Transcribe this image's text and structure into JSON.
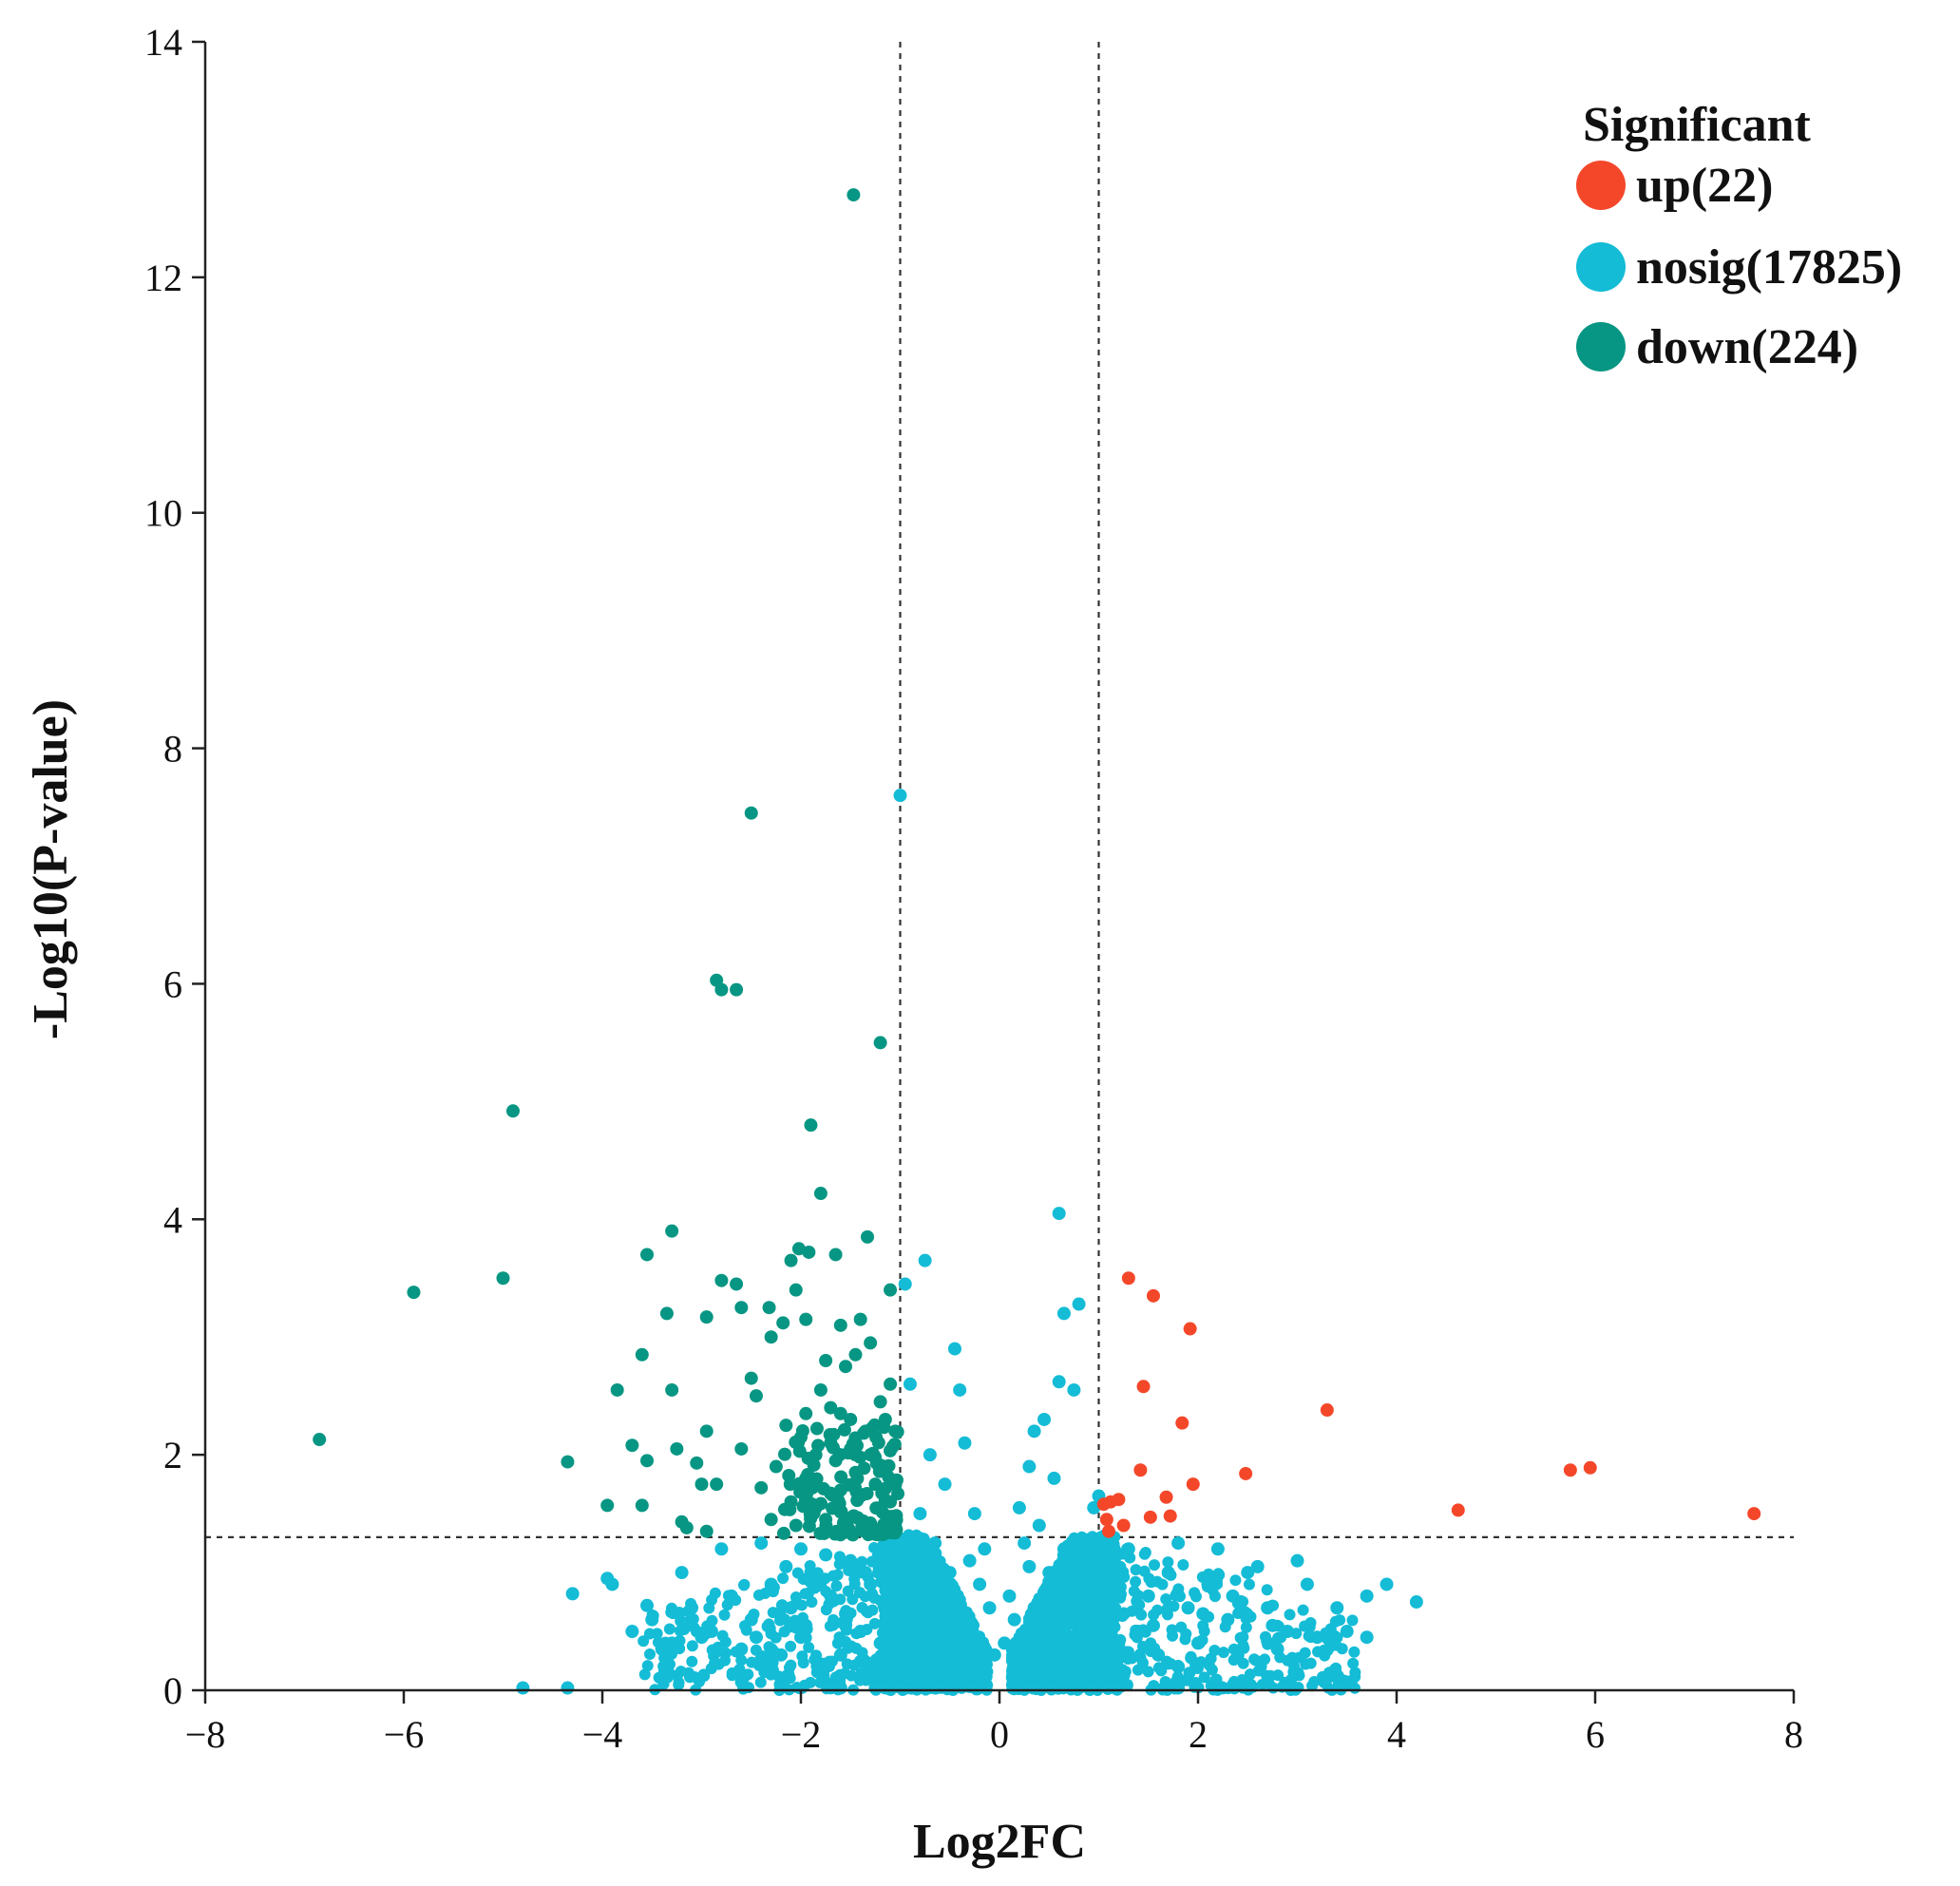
{
  "chart_data": {
    "type": "scatter",
    "title": "",
    "xlabel": "Log2FC",
    "ylabel": "-Log10(P-value)",
    "xlim": [
      -8,
      8
    ],
    "ylim": [
      0,
      14
    ],
    "xticks": [
      -8,
      -6,
      -4,
      -2,
      0,
      2,
      4,
      6,
      8
    ],
    "xtick_labels": [
      "−8",
      "−6",
      "−4",
      "−2",
      "0",
      "2",
      "4",
      "6",
      "8"
    ],
    "yticks": [
      0,
      2,
      4,
      6,
      8,
      10,
      12,
      14
    ],
    "ytick_labels": [
      "0",
      "2",
      "4",
      "6",
      "8",
      "10",
      "12",
      "14"
    ],
    "grid": false,
    "thresholds": {
      "log2fc": [
        -1,
        1
      ],
      "neg_log10_p": 1.3
    },
    "legend": {
      "title": "Significant",
      "position": "top-right",
      "entries": [
        {
          "key": "up",
          "label": "up(22)",
          "color": "#f4472a"
        },
        {
          "key": "nosig",
          "label": "nosig(17825)",
          "color": "#14bcd6"
        },
        {
          "key": "down",
          "label": "down(224)",
          "color": "#079683"
        }
      ]
    },
    "series": [
      {
        "name": "up",
        "color": "#f4472a",
        "points": [
          [
            7.6,
            1.5
          ],
          [
            5.95,
            1.89
          ],
          [
            5.75,
            1.87
          ],
          [
            4.62,
            1.53
          ],
          [
            3.3,
            2.38
          ],
          [
            2.48,
            1.84
          ],
          [
            1.92,
            3.07
          ],
          [
            1.95,
            1.75
          ],
          [
            1.84,
            2.27
          ],
          [
            1.55,
            3.35
          ],
          [
            1.45,
            2.58
          ],
          [
            1.42,
            1.87
          ],
          [
            1.3,
            3.5
          ],
          [
            1.72,
            1.48
          ],
          [
            1.52,
            1.47
          ],
          [
            1.68,
            1.64
          ],
          [
            1.05,
            1.58
          ],
          [
            1.12,
            1.6
          ],
          [
            1.2,
            1.62
          ],
          [
            1.1,
            1.35
          ],
          [
            1.25,
            1.4
          ],
          [
            1.08,
            1.45
          ]
        ]
      },
      {
        "name": "down",
        "color": "#079683",
        "points": [
          [
            -1.47,
            12.7
          ],
          [
            -2.5,
            7.45
          ],
          [
            -2.85,
            6.03
          ],
          [
            -2.8,
            5.95
          ],
          [
            -2.65,
            5.95
          ],
          [
            -1.2,
            5.5
          ],
          [
            -4.9,
            4.92
          ],
          [
            -1.9,
            4.8
          ],
          [
            -1.8,
            4.22
          ],
          [
            -3.3,
            3.9
          ],
          [
            -1.33,
            3.85
          ],
          [
            -3.55,
            3.7
          ],
          [
            -1.92,
            3.72
          ],
          [
            -2.02,
            3.75
          ],
          [
            -1.65,
            3.7
          ],
          [
            -2.1,
            3.65
          ],
          [
            -5.0,
            3.5
          ],
          [
            -5.9,
            3.38
          ],
          [
            -2.8,
            3.48
          ],
          [
            -2.65,
            3.45
          ],
          [
            -1.1,
            3.4
          ],
          [
            -2.05,
            3.4
          ],
          [
            -3.35,
            3.2
          ],
          [
            -2.6,
            3.25
          ],
          [
            -2.32,
            3.25
          ],
          [
            -2.95,
            3.17
          ],
          [
            -1.4,
            3.15
          ],
          [
            -1.6,
            3.1
          ],
          [
            -2.18,
            3.12
          ],
          [
            -1.95,
            3.15
          ],
          [
            -2.3,
            3.0
          ],
          [
            -1.3,
            2.95
          ],
          [
            -1.45,
            2.85
          ],
          [
            -3.6,
            2.85
          ],
          [
            -2.5,
            2.65
          ],
          [
            -1.75,
            2.8
          ],
          [
            -1.55,
            2.75
          ],
          [
            -3.85,
            2.55
          ],
          [
            -3.3,
            2.55
          ],
          [
            -2.45,
            2.5
          ],
          [
            -1.8,
            2.55
          ],
          [
            -1.1,
            2.6
          ],
          [
            -1.2,
            2.45
          ],
          [
            -1.6,
            2.35
          ],
          [
            -1.95,
            2.35
          ],
          [
            -2.15,
            2.25
          ],
          [
            -2.95,
            2.2
          ],
          [
            -3.25,
            2.05
          ],
          [
            -3.7,
            2.08
          ],
          [
            -6.85,
            2.13
          ],
          [
            -4.35,
            1.94
          ],
          [
            -3.55,
            1.95
          ],
          [
            -3.05,
            1.93
          ],
          [
            -2.6,
            2.05
          ],
          [
            -3.0,
            1.75
          ],
          [
            -2.85,
            1.75
          ],
          [
            -2.25,
            1.9
          ],
          [
            -1.7,
            2.1
          ],
          [
            -1.5,
            2.05
          ],
          [
            -1.3,
            2.0
          ],
          [
            -1.15,
            1.9
          ],
          [
            -1.95,
            1.8
          ],
          [
            -2.4,
            1.72
          ],
          [
            -2.1,
            1.6
          ],
          [
            -1.85,
            1.55
          ],
          [
            -1.6,
            1.7
          ],
          [
            -1.4,
            1.65
          ],
          [
            -1.2,
            1.55
          ],
          [
            -3.95,
            1.57
          ],
          [
            -3.6,
            1.57
          ],
          [
            -3.2,
            1.43
          ],
          [
            -2.95,
            1.35
          ],
          [
            -3.15,
            1.38
          ],
          [
            -2.3,
            1.45
          ],
          [
            -2.05,
            1.4
          ],
          [
            -1.75,
            1.45
          ],
          [
            -1.55,
            1.38
          ],
          [
            -1.3,
            1.42
          ],
          [
            -1.05,
            1.4
          ],
          [
            -1.1,
            1.6
          ],
          [
            -1.25,
            1.75
          ],
          [
            -1.45,
            1.85
          ],
          [
            -1.65,
            1.95
          ],
          [
            -1.85,
            2.0
          ],
          [
            -2.0,
            2.15
          ],
          [
            -1.05,
            2.2
          ],
          [
            -1.15,
            2.3
          ],
          [
            -1.35,
            2.2
          ],
          [
            -1.5,
            2.3
          ],
          [
            -1.7,
            2.4
          ]
        ]
      },
      {
        "name": "nosig",
        "color": "#14bcd6",
        "points": [
          [
            -1.0,
            7.6
          ],
          [
            0.6,
            4.05
          ],
          [
            -0.75,
            3.65
          ],
          [
            -0.95,
            3.45
          ],
          [
            0.8,
            3.28
          ],
          [
            0.65,
            3.2
          ],
          [
            -0.45,
            2.9
          ],
          [
            0.6,
            2.62
          ],
          [
            0.75,
            2.55
          ],
          [
            -0.4,
            2.55
          ],
          [
            -0.9,
            2.6
          ],
          [
            0.45,
            2.3
          ],
          [
            0.35,
            2.2
          ],
          [
            -0.35,
            2.1
          ],
          [
            -0.7,
            2.0
          ],
          [
            0.3,
            1.9
          ],
          [
            0.55,
            1.8
          ],
          [
            -0.55,
            1.75
          ],
          [
            -0.25,
            1.5
          ],
          [
            0.2,
            1.55
          ],
          [
            1.0,
            1.65
          ],
          [
            0.95,
            1.55
          ],
          [
            -0.8,
            1.5
          ],
          [
            0.4,
            1.4
          ],
          [
            -0.15,
            1.2
          ],
          [
            0.25,
            1.25
          ],
          [
            0.1,
            0.8
          ],
          [
            -0.1,
            0.7
          ],
          [
            0.05,
            0.4
          ],
          [
            -0.05,
            0.3
          ],
          [
            0.15,
            0.6
          ],
          [
            -0.2,
            0.9
          ],
          [
            0.3,
            1.05
          ],
          [
            -0.3,
            1.1
          ],
          [
            0.5,
            1.0
          ],
          [
            -0.5,
            1.0
          ],
          [
            0.7,
            0.9
          ],
          [
            -0.7,
            0.85
          ],
          [
            0.9,
            0.75
          ],
          [
            -0.9,
            0.7
          ],
          [
            0.8,
            0.5
          ],
          [
            -0.8,
            0.45
          ],
          [
            0.6,
            0.3
          ],
          [
            -0.6,
            0.25
          ],
          [
            0.4,
            0.15
          ],
          [
            -0.4,
            0.1
          ],
          [
            0.2,
            0.05
          ],
          [
            -0.2,
            0.05
          ],
          [
            0.35,
            0.7
          ],
          [
            -0.35,
            0.6
          ],
          [
            0.55,
            0.55
          ],
          [
            -0.55,
            0.5
          ],
          [
            0.75,
            0.2
          ],
          [
            -0.75,
            0.2
          ],
          [
            0.95,
            0.3
          ],
          [
            -0.95,
            0.3
          ],
          [
            0.85,
            1.1
          ],
          [
            -0.85,
            1.15
          ],
          [
            0.65,
            1.2
          ],
          [
            -0.65,
            1.25
          ],
          [
            1.1,
            0.9
          ],
          [
            1.3,
            1.2
          ],
          [
            1.5,
            0.8
          ],
          [
            1.7,
            1.0
          ],
          [
            1.9,
            0.7
          ],
          [
            2.1,
            0.9
          ],
          [
            2.3,
            0.6
          ],
          [
            2.5,
            1.0
          ],
          [
            2.7,
            0.7
          ],
          [
            2.9,
            0.5
          ],
          [
            3.1,
            0.9
          ],
          [
            3.4,
            0.7
          ],
          [
            3.7,
            0.8
          ],
          [
            3.9,
            0.9
          ],
          [
            4.2,
            0.75
          ],
          [
            3.5,
            0.5
          ],
          [
            3.0,
            1.1
          ],
          [
            2.6,
            1.05
          ],
          [
            2.2,
            1.2
          ],
          [
            1.8,
            1.25
          ],
          [
            1.2,
            0.4
          ],
          [
            1.4,
            0.5
          ],
          [
            1.6,
            0.3
          ],
          [
            1.8,
            0.2
          ],
          [
            2.0,
            0.4
          ],
          [
            2.4,
            0.3
          ],
          [
            2.8,
            0.35
          ],
          [
            3.2,
            0.45
          ],
          [
            3.7,
            0.45
          ],
          [
            1.0,
            0.2
          ],
          [
            1.25,
            0.65
          ],
          [
            1.55,
            0.55
          ],
          [
            2.05,
            0.65
          ],
          [
            2.35,
            0.8
          ],
          [
            2.75,
            0.55
          ],
          [
            -1.1,
            1.2
          ],
          [
            -1.3,
            0.9
          ],
          [
            -1.5,
            1.1
          ],
          [
            -1.7,
            0.8
          ],
          [
            -1.9,
            1.0
          ],
          [
            -2.1,
            0.7
          ],
          [
            -2.3,
            0.9
          ],
          [
            -2.5,
            0.6
          ],
          [
            -2.7,
            0.8
          ],
          [
            -2.9,
            0.5
          ],
          [
            -3.1,
            0.7
          ],
          [
            -3.3,
            0.4
          ],
          [
            -3.5,
            0.6
          ],
          [
            -3.7,
            0.5
          ],
          [
            -3.9,
            0.9
          ],
          [
            -4.3,
            0.82
          ],
          [
            -3.2,
            1.0
          ],
          [
            -2.8,
            1.2
          ],
          [
            -2.4,
            1.25
          ],
          [
            -2.0,
            1.2
          ],
          [
            -1.2,
            0.4
          ],
          [
            -1.4,
            0.5
          ],
          [
            -1.6,
            0.3
          ],
          [
            -1.8,
            0.2
          ],
          [
            -2.0,
            0.45
          ],
          [
            -2.2,
            0.3
          ],
          [
            -2.6,
            0.35
          ],
          [
            -3.0,
            0.45
          ],
          [
            -3.4,
            0.35
          ],
          [
            -1.05,
            0.1
          ],
          [
            -4.8,
            0.02
          ],
          [
            -4.35,
            0.02
          ],
          [
            -1.25,
            0.02
          ],
          [
            -1.6,
            0.02
          ],
          [
            -0.85,
            0.02
          ],
          [
            0.35,
            0.02
          ],
          [
            1.8,
            0.02
          ],
          [
            -3.55,
            0.72
          ],
          [
            -3.95,
            0.95
          ],
          [
            -2.15,
            1.05
          ],
          [
            -1.75,
            1.15
          ],
          [
            -1.35,
            1.0
          ],
          [
            -1.55,
            0.65
          ],
          [
            -1.95,
            0.55
          ],
          [
            -2.45,
            0.45
          ]
        ]
      }
    ]
  }
}
